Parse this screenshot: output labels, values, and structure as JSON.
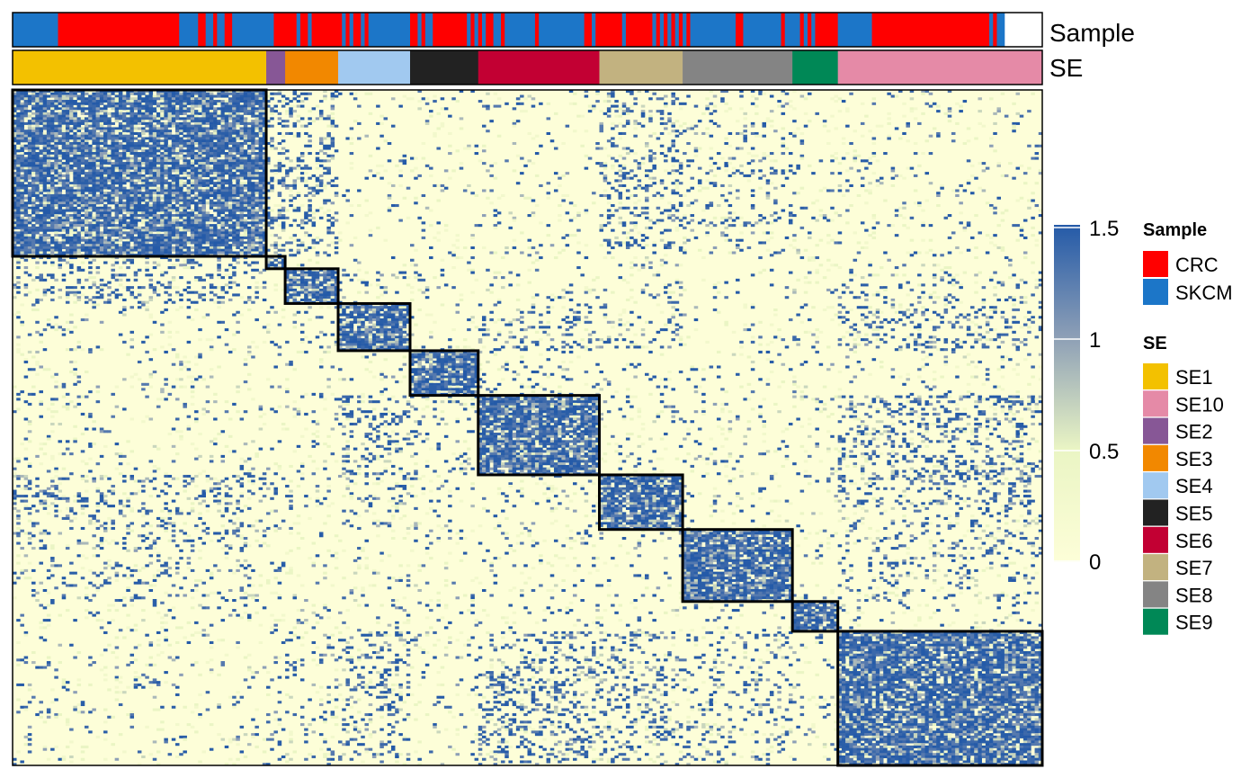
{
  "chart_data": {
    "type": "heatmap",
    "title": "",
    "xlabel": "",
    "ylabel": "",
    "annotation_tracks": [
      {
        "name": "Sample",
        "label": "Sample"
      },
      {
        "name": "SE",
        "label": "SE"
      }
    ],
    "color_scale": {
      "min": 0,
      "max": 1.5,
      "ticks": [
        "1.5",
        "1",
        "0.5",
        "0"
      ],
      "tick_values": [
        1.5,
        1,
        0.5,
        0
      ],
      "colors": [
        "#fdfed8",
        "#eaf5c4",
        "#8d9fb6",
        "#245aa8"
      ]
    },
    "legends": {
      "sample": {
        "title": "Sample",
        "entries": [
          {
            "label": "CRC",
            "color": "#ff0000"
          },
          {
            "label": "SKCM",
            "color": "#1c76c8"
          }
        ]
      },
      "se": {
        "title": "SE",
        "entries": [
          {
            "label": "SE1",
            "color": "#f3c100"
          },
          {
            "label": "SE10",
            "color": "#e58aa7"
          },
          {
            "label": "SE2",
            "color": "#875796"
          },
          {
            "label": "SE3",
            "color": "#f28800"
          },
          {
            "label": "SE4",
            "color": "#a1c9f0"
          },
          {
            "label": "SE5",
            "color": "#222222"
          },
          {
            "label": "SE6",
            "color": "#c20033"
          },
          {
            "label": "SE7",
            "color": "#c2b280"
          },
          {
            "label": "SE8",
            "color": "#848484"
          },
          {
            "label": "SE9",
            "color": "#008856"
          }
        ]
      }
    },
    "clusters": [
      {
        "name": "SE1",
        "size": 67
      },
      {
        "name": "SE2",
        "size": 5
      },
      {
        "name": "SE3",
        "size": 14
      },
      {
        "name": "SE4",
        "size": 19
      },
      {
        "name": "SE5",
        "size": 18
      },
      {
        "name": "SE6",
        "size": 32
      },
      {
        "name": "SE7",
        "size": 22
      },
      {
        "name": "SE8",
        "size": 29
      },
      {
        "name": "SE9",
        "size": 12
      },
      {
        "name": "SE10",
        "size": 54
      }
    ],
    "sample_track": [
      "SKCM",
      "CRC",
      "SKCM",
      "CRC",
      "SKCM",
      "CRC",
      "SKCM",
      "CRC",
      "SKCM",
      "CRC",
      "SKCM",
      "CRC",
      "SKCM",
      "CRC",
      "SKCM",
      "CRC",
      "SKCM",
      "CRC",
      "SKCM",
      "CRC",
      "SKCM",
      "CRC",
      "SKCM",
      "CRC",
      "SKCM",
      "CRC",
      "SKCM",
      "CRC",
      "SKCM",
      "CRC",
      "SKCM",
      "CRC",
      "SKCM",
      "CRC",
      "SKCM",
      "CRC",
      "SKCM",
      "CRC",
      "SKCM",
      "CRC",
      "SKCM",
      "CRC",
      "SKCM",
      "CRC",
      "SKCM",
      "CRC",
      "SKCM",
      "CRC",
      "SKCM",
      "CRC",
      "SKCM",
      "CRC",
      "SKCM",
      "CRC",
      "SKCM",
      "CRC",
      "SKCM",
      "CRC",
      "SKCM",
      "CRC",
      "SKCM",
      "CRC",
      "SKCM",
      "CRC",
      "SKCM",
      "CRC",
      "SKCM"
    ],
    "sample_track_sizes": [
      12,
      32,
      5,
      2,
      2,
      1,
      2,
      2,
      11,
      6,
      1,
      2,
      1,
      8,
      1,
      1,
      1,
      2,
      1,
      1,
      11,
      2,
      1,
      1,
      2,
      9,
      1,
      1,
      1,
      1,
      1,
      2,
      2,
      1,
      8,
      1,
      12,
      2,
      1,
      7,
      1,
      7,
      1,
      1,
      1,
      1,
      1,
      1,
      1,
      1,
      1,
      1,
      12,
      2,
      10,
      1,
      4,
      1,
      1,
      1,
      1,
      6,
      9,
      31,
      1,
      1,
      2
    ],
    "legend_labels": [
      "Sample",
      "SE"
    ]
  }
}
